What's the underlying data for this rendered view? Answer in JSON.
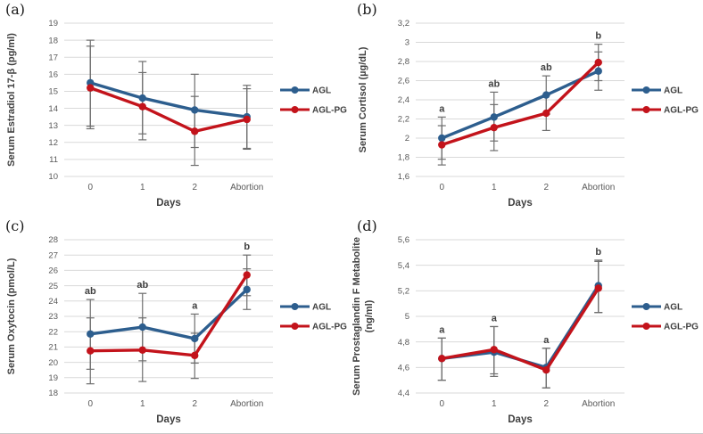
{
  "figure": {
    "legend_labels": [
      "AGL",
      "AGL-PG"
    ],
    "x_axis_title": "Days"
  },
  "colors": {
    "agl": "#2D5E8E",
    "aglpg": "#C3131B",
    "grid": "#D9D9D9",
    "tick_text": "#595959",
    "axis_label": "#3F3F3F",
    "error_bar": "#6E6E6E",
    "annotation": "#404040",
    "panel_letter": "#1A1A1A"
  },
  "chart_data": [
    {
      "type": "line",
      "panel_label": "(a)",
      "ylabel_lines": [
        "Serum Estradiol 17-β (pg/ml)"
      ],
      "xlabel": "Days",
      "categories": [
        "0",
        "1",
        "2",
        "Abortion"
      ],
      "ylim": [
        10,
        19
      ],
      "ytick_values": [
        10,
        11,
        12,
        13,
        14,
        15,
        16,
        17,
        18,
        19
      ],
      "ytick_labels": [
        "10",
        "11",
        "12",
        "13",
        "14",
        "15",
        "16",
        "17",
        "18",
        "19"
      ],
      "annotations": [
        "",
        "",
        "",
        ""
      ],
      "grid": true,
      "legend_position": "right",
      "series": [
        {
          "name": "AGL",
          "color_key": "agl",
          "values": [
            15.5,
            14.6,
            13.9,
            13.5
          ],
          "upper": [
            18.0,
            16.75,
            16.0,
            15.35
          ],
          "lower": [
            12.95,
            12.5,
            11.7,
            11.65
          ]
        },
        {
          "name": "AGL-PG",
          "color_key": "aglpg",
          "values": [
            15.2,
            14.1,
            12.65,
            13.35
          ],
          "upper": [
            17.65,
            16.1,
            14.7,
            15.15
          ],
          "lower": [
            12.8,
            12.15,
            10.65,
            11.6
          ]
        }
      ]
    },
    {
      "type": "line",
      "panel_label": "(b)",
      "ylabel_lines": [
        "Serum Cortisol (µg/dL)"
      ],
      "xlabel": "Days",
      "categories": [
        "0",
        "1",
        "2",
        "Abortion"
      ],
      "ylim": [
        1.6,
        3.2
      ],
      "ytick_values": [
        1.6,
        1.8,
        2.0,
        2.2,
        2.4,
        2.6,
        2.8,
        3.0,
        3.2
      ],
      "ytick_labels": [
        "1,6",
        "1,8",
        "2",
        "2,2",
        "2,4",
        "2,6",
        "2,8",
        "3",
        "3,2"
      ],
      "annotations": [
        "a",
        "ab",
        "ab",
        "b"
      ],
      "grid": true,
      "legend_position": "right",
      "series": [
        {
          "name": "AGL",
          "color_key": "agl",
          "values": [
            2.0,
            2.22,
            2.45,
            2.7
          ],
          "upper": [
            2.22,
            2.48,
            2.65,
            2.9
          ],
          "lower": [
            1.78,
            1.97,
            2.25,
            2.5
          ]
        },
        {
          "name": "AGL-PG",
          "color_key": "aglpg",
          "values": [
            1.93,
            2.11,
            2.26,
            2.79
          ],
          "upper": [
            2.13,
            2.35,
            2.45,
            2.98
          ],
          "lower": [
            1.72,
            1.87,
            2.08,
            2.6
          ]
        }
      ]
    },
    {
      "type": "line",
      "panel_label": "(c)",
      "ylabel_lines": [
        "Serum Oxytocin (pmol/L)"
      ],
      "xlabel": "Days",
      "categories": [
        "0",
        "1",
        "2",
        "Abortion"
      ],
      "ylim": [
        18,
        28
      ],
      "ytick_values": [
        18,
        19,
        20,
        21,
        22,
        23,
        24,
        25,
        26,
        27,
        28
      ],
      "ytick_labels": [
        "18",
        "19",
        "20",
        "21",
        "22",
        "23",
        "24",
        "25",
        "26",
        "27",
        "28"
      ],
      "annotations": [
        "ab",
        "ab",
        "a",
        "b"
      ],
      "grid": true,
      "legend_position": "right",
      "series": [
        {
          "name": "AGL",
          "color_key": "agl",
          "values": [
            21.85,
            22.3,
            21.55,
            24.75
          ],
          "upper": [
            24.1,
            24.5,
            23.15,
            26.1
          ],
          "lower": [
            19.55,
            20.1,
            19.95,
            23.45
          ]
        },
        {
          "name": "AGL-PG",
          "color_key": "aglpg",
          "values": [
            20.75,
            20.8,
            20.45,
            25.7
          ],
          "upper": [
            22.9,
            22.9,
            21.9,
            27.0
          ],
          "lower": [
            18.6,
            18.75,
            18.95,
            24.35
          ]
        }
      ]
    },
    {
      "type": "line",
      "panel_label": "(d)",
      "ylabel_lines": [
        "Serum Prostaglandin F Metabolite",
        "(ng/ml)"
      ],
      "xlabel": "Days",
      "categories": [
        "0",
        "1",
        "2",
        "Abortion"
      ],
      "ylim": [
        4.4,
        5.6
      ],
      "ytick_values": [
        4.4,
        4.6,
        4.8,
        5.0,
        5.2,
        5.4,
        5.6
      ],
      "ytick_labels": [
        "4,4",
        "4,6",
        "4,8",
        "5",
        "5,2",
        "5,4",
        "5,6"
      ],
      "annotations": [
        "a",
        "a",
        "a",
        "b"
      ],
      "grid": true,
      "legend_position": "right",
      "series": [
        {
          "name": "AGL",
          "color_key": "agl",
          "values": [
            4.67,
            4.72,
            4.6,
            5.24
          ],
          "upper": [
            4.83,
            4.92,
            4.75,
            5.44
          ],
          "lower": [
            4.5,
            4.53,
            4.44,
            5.03
          ]
        },
        {
          "name": "AGL-PG",
          "color_key": "aglpg",
          "values": [
            4.67,
            4.74,
            4.58,
            5.22
          ],
          "upper": [
            4.83,
            4.92,
            4.75,
            5.43
          ],
          "lower": [
            4.5,
            4.55,
            4.44,
            5.03
          ]
        }
      ]
    }
  ]
}
